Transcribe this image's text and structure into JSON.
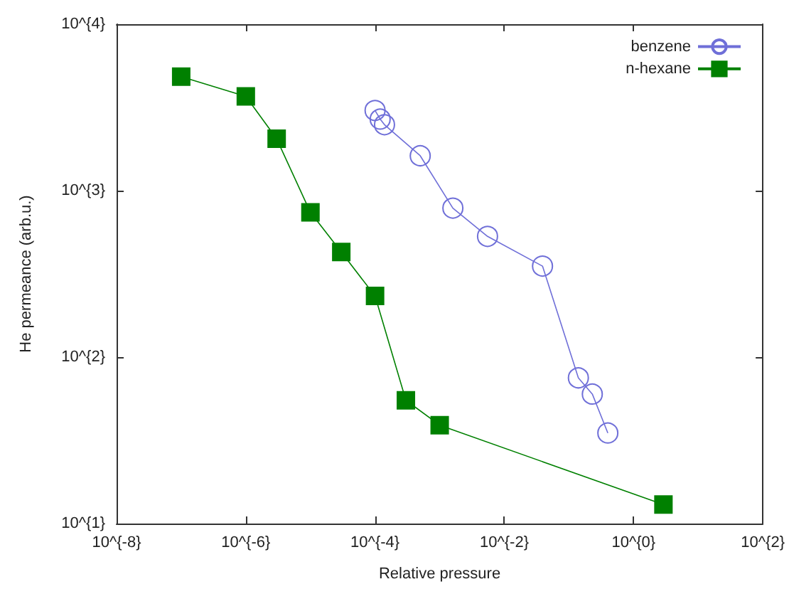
{
  "chart_data": {
    "type": "line",
    "xlabel": "Relative pressure",
    "ylabel": "He permeance (arb.u.)",
    "log": "xy",
    "grid": false,
    "legend": "top right",
    "xlim": [
      1e-08,
      100
    ],
    "ylim": [
      10,
      10000
    ],
    "xticks": [
      {
        "value": 1e-08,
        "label": "10^{-8}"
      },
      {
        "value": 1e-06,
        "label": "10^{-6}"
      },
      {
        "value": 0.0001,
        "label": "10^{-4}"
      },
      {
        "value": 0.01,
        "label": "10^{-2}"
      },
      {
        "value": 1,
        "label": "10^{0}"
      },
      {
        "value": 100,
        "label": "10^{2}"
      }
    ],
    "yticks": [
      {
        "value": 10,
        "label": "10^{1}"
      },
      {
        "value": 100,
        "label": "10^{2}"
      },
      {
        "value": 1000,
        "label": "10^{3}"
      },
      {
        "value": 10000,
        "label": "10^{4}"
      }
    ],
    "series": [
      {
        "name": "benzene",
        "color": "#6f6fd8",
        "marker": "circle",
        "x": [
          0.0001,
          0.00012,
          0.00014,
          0.0005,
          0.0016,
          0.0055,
          0.039,
          0.14,
          0.23,
          0.4
        ],
        "values": [
          3030,
          2690,
          2490,
          1620,
          785,
          531,
          352,
          75,
          60,
          35
        ]
      },
      {
        "name": "n-hexane",
        "color": "#008000",
        "marker": "square",
        "x": [
          1e-07,
          1e-06,
          3e-06,
          1e-05,
          3e-05,
          0.0001,
          0.0003,
          0.001,
          2.9
        ],
        "values": [
          4840,
          3680,
          2050,
          740,
          428,
          233,
          55,
          39,
          13
        ]
      }
    ]
  }
}
